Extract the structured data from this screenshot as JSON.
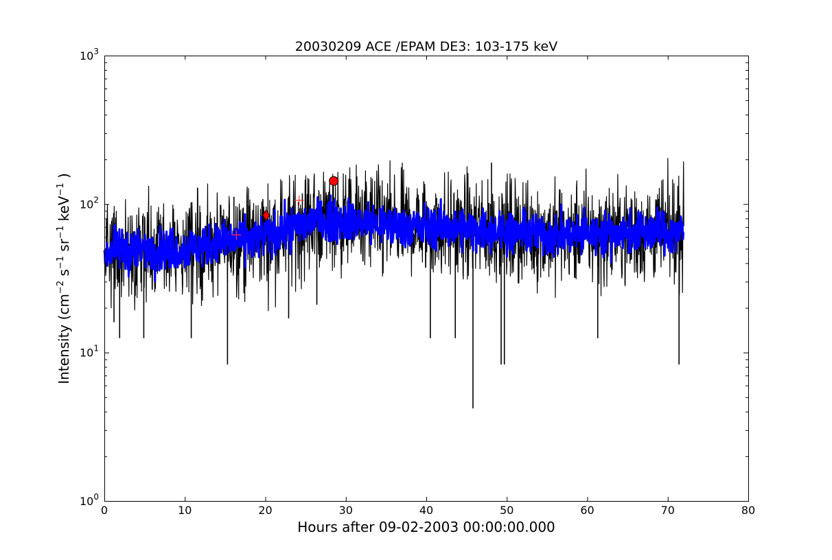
{
  "chart_data": {
    "type": "line",
    "title": "20030209 ACE /EPAM DE3: 103-175 keV",
    "xlabel": "Hours after 09-02-2003 00:00:00.000",
    "ylabel": "Intensity (cm",
    "ylabel_parts": [
      "Intensity (cm",
      "−2",
      " s",
      "−1",
      " sr",
      "−1",
      " keV",
      "−1",
      " )"
    ],
    "xlim": [
      0,
      80
    ],
    "ylim": [
      1,
      1000
    ],
    "yscale": "log",
    "grid": false,
    "x_ticks": [
      "0",
      "10",
      "20",
      "30",
      "40",
      "50",
      "60",
      "70",
      "80"
    ],
    "y_ticks": [
      {
        "base": "10",
        "exp": "0"
      },
      {
        "base": "10",
        "exp": "1"
      },
      {
        "base": "10",
        "exp": "2"
      },
      {
        "base": "10",
        "exp": "3"
      }
    ],
    "series": [
      {
        "kind": "raw",
        "color": "#000000",
        "x_range": [
          0,
          72
        ],
        "baseline_anchors": [
          [
            0,
            48
          ],
          [
            10,
            50
          ],
          [
            15,
            55
          ],
          [
            20,
            60
          ],
          [
            24,
            70
          ],
          [
            26,
            78
          ],
          [
            30,
            78
          ],
          [
            35,
            72
          ],
          [
            45,
            68
          ],
          [
            50,
            66
          ],
          [
            55,
            62
          ],
          [
            60,
            63
          ],
          [
            65,
            64
          ],
          [
            72,
            65
          ]
        ],
        "spikes": [
          [
            15.3,
            8.3
          ],
          [
            45.8,
            4.2
          ],
          [
            49.3,
            8.3
          ],
          [
            49.7,
            8.3
          ],
          [
            71.4,
            8.3
          ],
          [
            48.1,
            190
          ],
          [
            1.2,
            16
          ],
          [
            1.9,
            12.5
          ],
          [
            4.9,
            12.5
          ],
          [
            10.8,
            12.5
          ],
          [
            22.9,
            17
          ],
          [
            26.4,
            21
          ],
          [
            40.5,
            12.5
          ],
          [
            43.6,
            12.5
          ],
          [
            61.3,
            12.5
          ],
          [
            24.6,
            118
          ],
          [
            16.1,
            112
          ],
          [
            19.7,
            108
          ]
        ]
      },
      {
        "kind": "smoothed",
        "color": "#0000ff",
        "x_range": [
          0,
          72
        ]
      }
    ],
    "markers": [
      {
        "shape": "plus",
        "x": 16.4,
        "y": 62,
        "color": "#ff3333"
      },
      {
        "shape": "diamond",
        "x": 20.1,
        "y": 84,
        "color": "#ff0000"
      },
      {
        "shape": "plus",
        "x": 24.2,
        "y": 106,
        "color": "#ff3333"
      },
      {
        "shape": "circle",
        "x": 28.5,
        "y": 143,
        "color": "#ff0000"
      }
    ]
  }
}
